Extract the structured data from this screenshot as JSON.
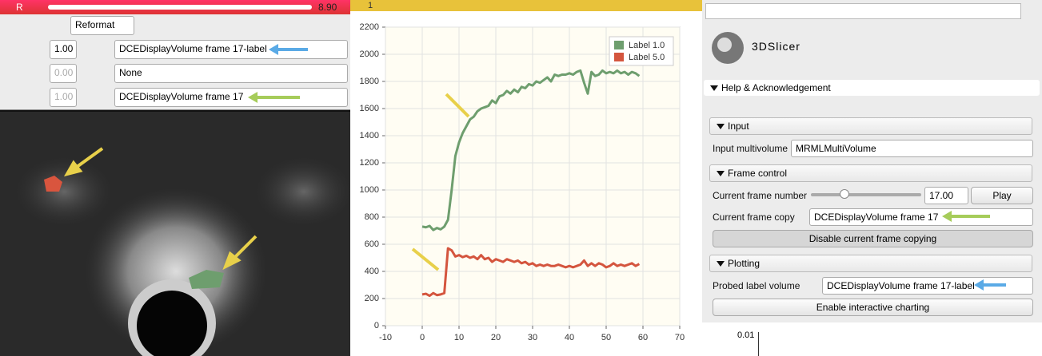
{
  "slice_view": {
    "header": {
      "orientation": "R",
      "offset": "8.90"
    },
    "toolbar": {
      "mode": "Reformat"
    },
    "layers": [
      {
        "opacity": "1.00",
        "volume": "DCEDisplayVolume frame 17-label"
      },
      {
        "opacity": "0.00",
        "volume": "None"
      },
      {
        "opacity": "1.00",
        "volume": "DCEDisplayVolume frame 17"
      }
    ]
  },
  "chart_view": {
    "header": "1"
  },
  "chart_data": {
    "type": "line",
    "x": [
      0,
      1,
      2,
      3,
      4,
      5,
      6,
      7,
      8,
      9,
      10,
      11,
      12,
      13,
      14,
      15,
      16,
      17,
      18,
      19,
      20,
      21,
      22,
      23,
      24,
      25,
      26,
      27,
      28,
      29,
      30,
      31,
      32,
      33,
      34,
      35,
      36,
      37,
      38,
      39,
      40,
      41,
      42,
      43,
      44,
      45,
      46,
      47,
      48,
      49,
      50,
      51,
      52,
      53,
      54,
      55,
      56,
      57,
      58,
      59
    ],
    "series": [
      {
        "name": "Label 1.0",
        "color": "#6e9e6e",
        "values": [
          730,
          725,
          735,
          705,
          720,
          710,
          730,
          780,
          1000,
          1250,
          1350,
          1420,
          1470,
          1520,
          1540,
          1580,
          1600,
          1610,
          1620,
          1660,
          1640,
          1690,
          1700,
          1730,
          1710,
          1740,
          1720,
          1760,
          1750,
          1780,
          1770,
          1800,
          1790,
          1810,
          1830,
          1800,
          1850,
          1840,
          1850,
          1850,
          1860,
          1850,
          1870,
          1880,
          1790,
          1710,
          1870,
          1840,
          1850,
          1880,
          1860,
          1870,
          1860,
          1880,
          1860,
          1870,
          1850,
          1870,
          1860,
          1840
        ]
      },
      {
        "name": "Label 5.0",
        "color": "#d4553e",
        "values": [
          230,
          235,
          220,
          240,
          225,
          230,
          240,
          570,
          555,
          510,
          520,
          505,
          515,
          500,
          510,
          490,
          520,
          490,
          500,
          470,
          490,
          480,
          470,
          490,
          480,
          470,
          480,
          460,
          470,
          450,
          460,
          440,
          450,
          440,
          450,
          440,
          440,
          450,
          440,
          430,
          440,
          430,
          440,
          450,
          480,
          440,
          460,
          440,
          460,
          450,
          430,
          440,
          460,
          440,
          450,
          440,
          450,
          460,
          440,
          455
        ]
      }
    ],
    "xlim": [
      -10,
      70
    ],
    "xticks": [
      -10,
      0,
      10,
      20,
      30,
      40,
      50,
      60,
      70
    ],
    "ylim": [
      0,
      2200
    ],
    "yticks": [
      0,
      200,
      400,
      600,
      800,
      1000,
      1200,
      1400,
      1600,
      1800,
      2000,
      2200
    ],
    "grid": true,
    "legend": "top-right"
  },
  "module_panel": {
    "logo": "3DSlicer",
    "help": "Help & Acknowledgement",
    "input": {
      "title": "Input",
      "label": "Input multivolume",
      "value": "MRMLMultiVolume"
    },
    "frame_control": {
      "title": "Frame control",
      "frame_label": "Current frame number",
      "frame_value": "17.00",
      "play": "Play",
      "copy_label": "Current frame copy",
      "copy_value": "DCEDisplayVolume frame 17",
      "disable": "Disable current frame copying"
    },
    "plotting": {
      "title": "Plotting",
      "label": "Probed label volume",
      "value": "DCEDisplayVolume frame 17-label",
      "enable": "Enable interactive charting"
    },
    "mini_chart_tick": "0.01"
  }
}
